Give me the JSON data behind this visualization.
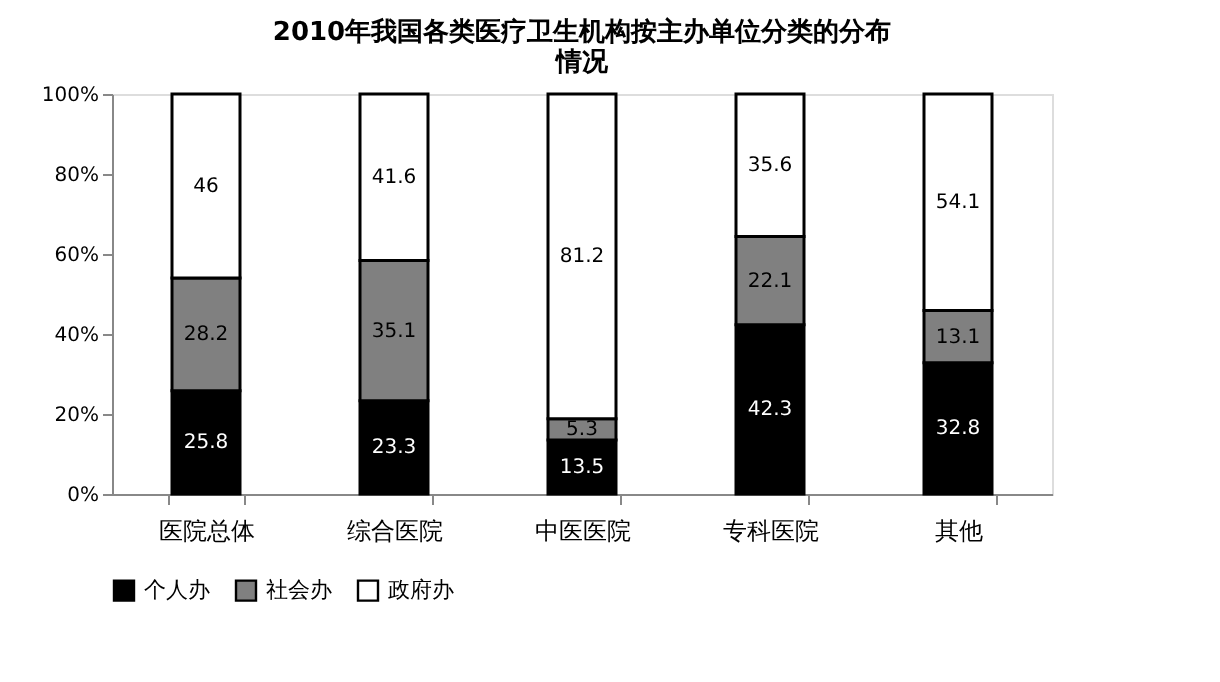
{
  "chart_data": {
    "type": "bar",
    "stacked": true,
    "title": "2010年我国各类医疗卫生机构按主办单位分类的分布情况",
    "categories": [
      "医院总体",
      "综合医院",
      "中医医院",
      "专科医院",
      "其他"
    ],
    "series": [
      {
        "name": "个人办",
        "color": "#000000",
        "values": [
          25.8,
          23.3,
          13.5,
          42.3,
          32.8
        ]
      },
      {
        "name": "社会办",
        "color": "#808080",
        "values": [
          28.2,
          35.1,
          5.3,
          22.1,
          13.1
        ]
      },
      {
        "name": "政府办",
        "color": "#ffffff",
        "values": [
          46,
          41.6,
          81.2,
          35.6,
          54.1
        ]
      }
    ],
    "ylim": [
      0,
      100
    ],
    "yticks": [
      {
        "value": 0,
        "label": "0%"
      },
      {
        "value": 20,
        "label": "20%"
      },
      {
        "value": 40,
        "label": "40%"
      },
      {
        "value": 60,
        "label": "60%"
      },
      {
        "value": 80,
        "label": "80%"
      },
      {
        "value": 100,
        "label": "100%"
      }
    ],
    "data_labels": true,
    "grid": false,
    "legend": "bottom"
  }
}
